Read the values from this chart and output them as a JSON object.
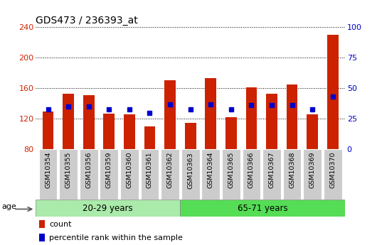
{
  "title": "GDS473 / 236393_at",
  "samples": [
    "GSM10354",
    "GSM10355",
    "GSM10356",
    "GSM10359",
    "GSM10360",
    "GSM10361",
    "GSM10362",
    "GSM10363",
    "GSM10364",
    "GSM10365",
    "GSM10366",
    "GSM10367",
    "GSM10368",
    "GSM10369",
    "GSM10370"
  ],
  "count_values": [
    130,
    153,
    151,
    127,
    126,
    110,
    170,
    115,
    173,
    122,
    161,
    153,
    165,
    126,
    230
  ],
  "percentile_values": [
    33,
    35,
    35,
    33,
    33,
    30,
    37,
    33,
    37,
    33,
    36,
    36,
    36,
    33,
    43
  ],
  "ymin": 80,
  "ymax": 240,
  "yticks": [
    80,
    120,
    160,
    200,
    240
  ],
  "y2min": 0,
  "y2max": 100,
  "y2ticks": [
    0,
    25,
    50,
    75,
    100
  ],
  "group1_label": "20-29 years",
  "group2_label": "65-71 years",
  "group1_count": 7,
  "group2_count": 8,
  "age_label": "age",
  "bar_color": "#cc2200",
  "pct_color": "#0000cc",
  "bg_color_group1": "#aaeaaa",
  "bg_color_group2": "#55dd55",
  "tick_label_color_left": "#cc2200",
  "tick_label_color_right": "#0000cc",
  "legend_count_label": "count",
  "legend_pct_label": "percentile rank within the sample",
  "bar_width": 0.55,
  "title_fontsize": 10,
  "tick_fontsize": 8,
  "sample_bg": "#cccccc"
}
